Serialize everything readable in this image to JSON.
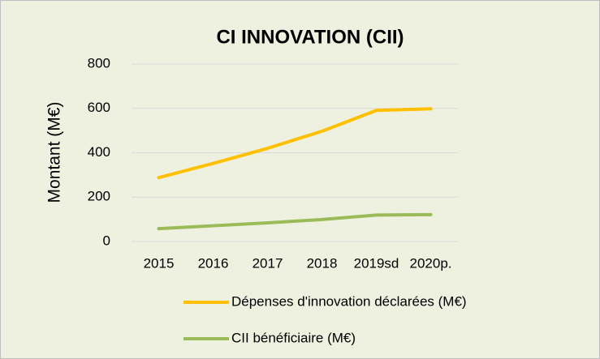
{
  "chart_data": {
    "type": "line",
    "title": "CI INNOVATION (CII)",
    "y_label": "Montant (M€)",
    "categories": [
      "2015",
      "2016",
      "2017",
      "2018",
      "2019sd",
      "2020p."
    ],
    "series": [
      {
        "name": "Dépenses d'innovation déclarées (M€)",
        "color": "#ffc000",
        "values": [
          288,
          352,
          420,
          497,
          591,
          598
        ]
      },
      {
        "name": "CII bénéficiaire (M€)",
        "color": "#9bbb59",
        "values": [
          58,
          71,
          84,
          99,
          119,
          121
        ]
      }
    ],
    "ylim": [
      0,
      800
    ],
    "yticks": [
      0,
      200,
      400,
      600,
      800
    ],
    "grid": true,
    "legend": "bottom"
  }
}
